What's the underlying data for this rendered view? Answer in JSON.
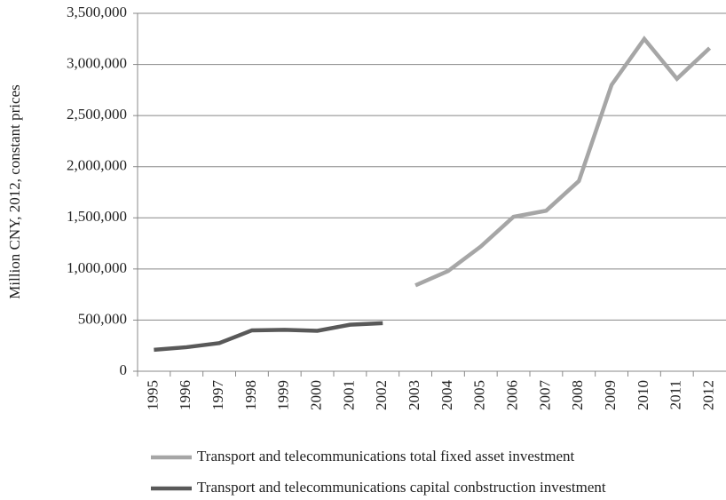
{
  "chart_data": {
    "type": "line",
    "y_label": "Million CNY, 2012, constant prices",
    "categories": [
      "1995",
      "1996",
      "1997",
      "1998",
      "1999",
      "2000",
      "2001",
      "2002",
      "2003",
      "2004",
      "2005",
      "2006",
      "2007",
      "2008",
      "2009",
      "2010",
      "2011",
      "2012"
    ],
    "series": [
      {
        "name": "Transport and telecommunications total fixed asset investment",
        "color": "#a6a6a6",
        "values": [
          null,
          null,
          null,
          null,
          null,
          null,
          null,
          null,
          840000,
          980000,
          1220000,
          1510000,
          1570000,
          1860000,
          2800000,
          3250000,
          2860000,
          3160000
        ]
      },
      {
        "name": "Transport and telecommunications capital conbstruction investment",
        "color": "#595959",
        "values": [
          210000,
          235000,
          275000,
          400000,
          405000,
          395000,
          455000,
          470000,
          null,
          null,
          null,
          null,
          null,
          null,
          null,
          null,
          null,
          null
        ]
      }
    ],
    "ylim": [
      0,
      3500000
    ],
    "yticks": [
      0,
      {
        "value": 500000,
        "label": "500,000"
      },
      {
        "value": 1000000,
        "label": "1,000,000"
      },
      {
        "value": 1500000,
        "label": "1,500,000"
      },
      {
        "value": 2000000,
        "label": "2,000,000"
      },
      {
        "value": 2500000,
        "label": "2,500,000"
      },
      {
        "value": 3000000,
        "label": "3,000,000"
      },
      {
        "value": 3500000,
        "label": "3,500,000"
      }
    ],
    "grid": true
  }
}
